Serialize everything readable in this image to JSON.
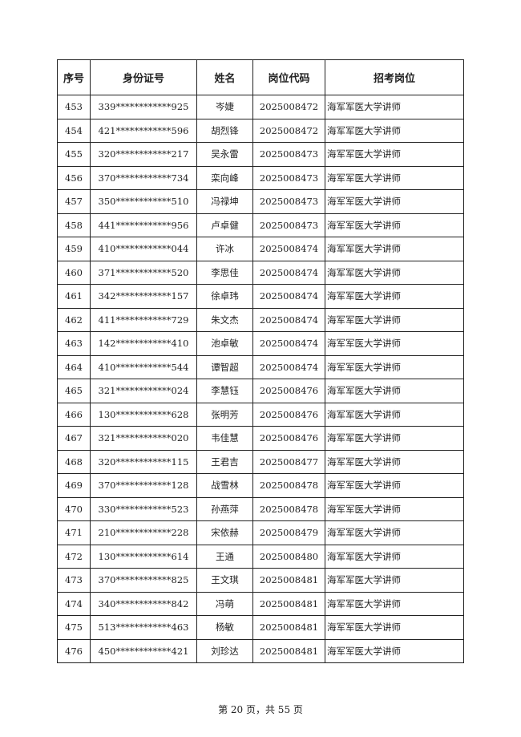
{
  "table": {
    "headers": [
      "序号",
      "身份证号",
      "姓名",
      "岗位代码",
      "招考岗位"
    ],
    "rows": [
      [
        "453",
        "339************925",
        "岑婕",
        "2025008472",
        "海军军医大学讲师"
      ],
      [
        "454",
        "421************596",
        "胡烈锋",
        "2025008472",
        "海军军医大学讲师"
      ],
      [
        "455",
        "320************217",
        "吴永雷",
        "2025008473",
        "海军军医大学讲师"
      ],
      [
        "456",
        "370************734",
        "栾向峰",
        "2025008473",
        "海军军医大学讲师"
      ],
      [
        "457",
        "350************510",
        "冯禄坤",
        "2025008473",
        "海军军医大学讲师"
      ],
      [
        "458",
        "441************956",
        "卢卓健",
        "2025008473",
        "海军军医大学讲师"
      ],
      [
        "459",
        "410************044",
        "许冰",
        "2025008474",
        "海军军医大学讲师"
      ],
      [
        "460",
        "371************520",
        "李思佳",
        "2025008474",
        "海军军医大学讲师"
      ],
      [
        "461",
        "342************157",
        "徐卓玮",
        "2025008474",
        "海军军医大学讲师"
      ],
      [
        "462",
        "411************729",
        "朱文杰",
        "2025008474",
        "海军军医大学讲师"
      ],
      [
        "463",
        "142************410",
        "池卓敏",
        "2025008474",
        "海军军医大学讲师"
      ],
      [
        "464",
        "410************544",
        "谭智超",
        "2025008474",
        "海军军医大学讲师"
      ],
      [
        "465",
        "321************024",
        "李慧钰",
        "2025008476",
        "海军军医大学讲师"
      ],
      [
        "466",
        "130************628",
        "张明芳",
        "2025008476",
        "海军军医大学讲师"
      ],
      [
        "467",
        "321************020",
        "韦佳慧",
        "2025008476",
        "海军军医大学讲师"
      ],
      [
        "468",
        "320************115",
        "王君吉",
        "2025008477",
        "海军军医大学讲师"
      ],
      [
        "469",
        "370************128",
        "战雪林",
        "2025008478",
        "海军军医大学讲师"
      ],
      [
        "470",
        "330************523",
        "孙燕萍",
        "2025008478",
        "海军军医大学讲师"
      ],
      [
        "471",
        "210************228",
        "宋依赫",
        "2025008479",
        "海军军医大学讲师"
      ],
      [
        "472",
        "130************614",
        "王通",
        "2025008480",
        "海军军医大学讲师"
      ],
      [
        "473",
        "370************825",
        "王文琪",
        "2025008481",
        "海军军医大学讲师"
      ],
      [
        "474",
        "340************842",
        "冯萌",
        "2025008481",
        "海军军医大学讲师"
      ],
      [
        "475",
        "513************463",
        "杨敏",
        "2025008481",
        "海军军医大学讲师"
      ],
      [
        "476",
        "450************421",
        "刘珍达",
        "2025008481",
        "海军军医大学讲师"
      ]
    ]
  },
  "footer": {
    "text": "第 20 页，共 55 页"
  }
}
